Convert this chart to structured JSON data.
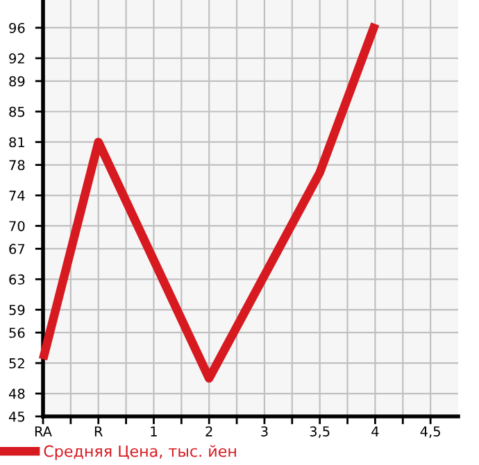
{
  "chart_data": {
    "type": "line",
    "categories": [
      "RA",
      "R",
      "1",
      "2",
      "3",
      "3,5",
      "4",
      "4,5"
    ],
    "series": [
      {
        "name": "Средняя Цена, тыс. йен",
        "color": "#d71920",
        "values": [
          52.5,
          81,
          null,
          50,
          null,
          77,
          96.5,
          null
        ]
      }
    ],
    "ylim": [
      45,
      99.64
    ],
    "yticks": [
      45,
      48,
      52,
      56,
      59,
      63,
      67,
      70,
      74,
      78,
      81,
      85,
      89,
      92,
      96
    ],
    "grid": true,
    "legend": "bottom left",
    "marker": "none",
    "line_style": "solid"
  }
}
